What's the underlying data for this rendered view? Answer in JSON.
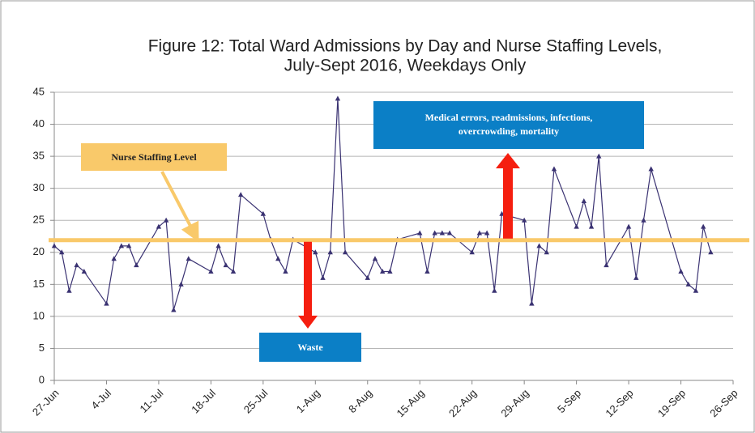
{
  "chart_data": {
    "type": "line",
    "title": [
      "Figure 12: Total Ward Admissions by Day and Nurse Staffing Levels,",
      "July-Sept 2016, Weekdays Only"
    ],
    "x": [
      "27-Jun",
      "28-Jun",
      "29-Jun",
      "30-Jun",
      "1-Jul",
      "4-Jul",
      "5-Jul",
      "6-Jul",
      "7-Jul",
      "8-Jul",
      "11-Jul",
      "12-Jul",
      "13-Jul",
      "14-Jul",
      "15-Jul",
      "18-Jul",
      "19-Jul",
      "20-Jul",
      "21-Jul",
      "22-Jul",
      "25-Jul",
      "26-Jul",
      "27-Jul",
      "28-Jul",
      "29-Jul",
      "1-Aug",
      "2-Aug",
      "3-Aug",
      "4-Aug",
      "5-Aug",
      "8-Aug",
      "9-Aug",
      "10-Aug",
      "11-Aug",
      "12-Aug",
      "15-Aug",
      "16-Aug",
      "17-Aug",
      "18-Aug",
      "19-Aug",
      "22-Aug",
      "23-Aug",
      "24-Aug",
      "25-Aug",
      "26-Aug",
      "29-Aug",
      "30-Aug",
      "31-Aug",
      "1-Sep",
      "2-Sep",
      "5-Sep",
      "6-Sep",
      "7-Sep",
      "8-Sep",
      "9-Sep",
      "12-Sep",
      "13-Sep",
      "14-Sep",
      "15-Sep",
      "19-Sep",
      "20-Sep",
      "21-Sep",
      "22-Sep",
      "23-Sep"
    ],
    "series": [
      {
        "name": "Total Ward Admissions",
        "color": "#3a3272",
        "values": [
          21,
          20,
          14,
          18,
          17,
          12,
          19,
          21,
          21,
          18,
          24,
          25,
          11,
          15,
          19,
          17,
          21,
          18,
          17,
          29,
          26,
          22,
          19,
          17,
          22,
          20,
          16,
          20,
          44,
          20,
          16,
          19,
          17,
          17,
          22,
          23,
          17,
          23,
          23,
          23,
          20,
          23,
          23,
          14,
          26,
          25,
          12,
          21,
          20,
          33,
          24,
          28,
          24,
          35,
          18,
          24,
          16,
          25,
          33,
          17,
          15,
          14,
          24,
          20
        ]
      }
    ],
    "xlim": [
      "27-Jun",
      "26-Sep"
    ],
    "xticks": [
      "27-Jun",
      "4-Jul",
      "11-Jul",
      "18-Jul",
      "25-Jul",
      "1-Aug",
      "8-Aug",
      "15-Aug",
      "22-Aug",
      "29-Aug",
      "5-Sep",
      "12-Sep",
      "19-Sep",
      "26-Sep"
    ],
    "ylim": [
      0,
      45
    ],
    "yticks": [
      0,
      5,
      10,
      15,
      20,
      25,
      30,
      35,
      40,
      45
    ],
    "grid": true,
    "staffing_level": 21.9,
    "staffing_color": "#f9c96a",
    "staffing_label": "Nurse Staffing Level",
    "up_label": [
      "Medical errors, readmissions, infections,",
      "overcrowding, mortality"
    ],
    "down_label": "Waste"
  }
}
